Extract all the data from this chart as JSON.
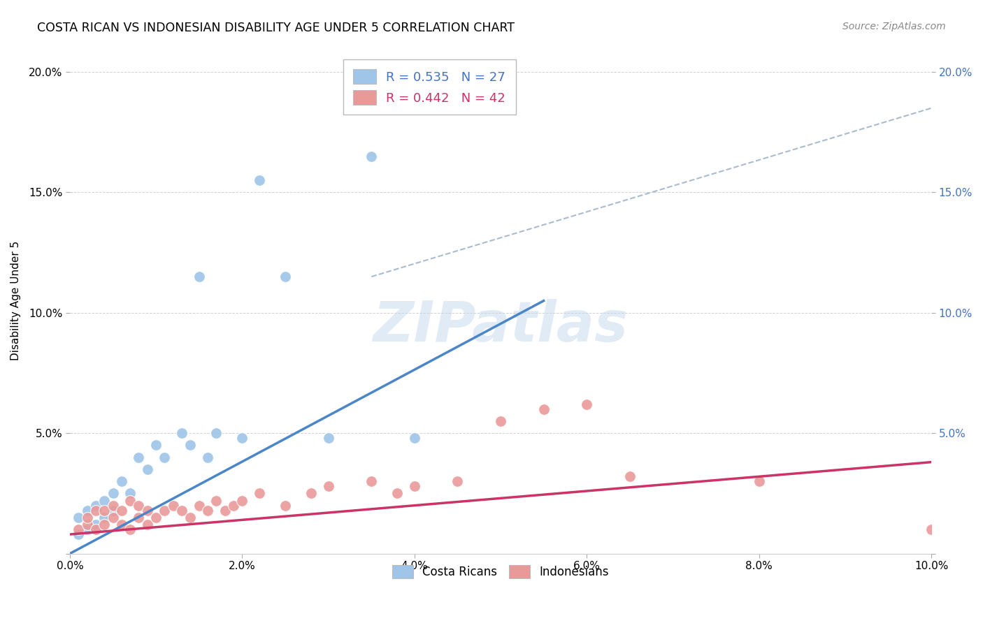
{
  "title": "COSTA RICAN VS INDONESIAN DISABILITY AGE UNDER 5 CORRELATION CHART",
  "source": "Source: ZipAtlas.com",
  "ylabel": "Disability Age Under 5",
  "xlim": [
    0.0,
    0.1
  ],
  "ylim": [
    0.0,
    0.21
  ],
  "xticks": [
    0.0,
    0.02,
    0.04,
    0.06,
    0.08,
    0.1
  ],
  "yticks": [
    0.0,
    0.05,
    0.1,
    0.15,
    0.2
  ],
  "xticklabels": [
    "0.0%",
    "2.0%",
    "4.0%",
    "6.0%",
    "8.0%",
    "10.0%"
  ],
  "yticklabels_left": [
    "",
    "5.0%",
    "10.0%",
    "15.0%",
    "20.0%"
  ],
  "yticklabels_right": [
    "",
    "5.0%",
    "10.0%",
    "15.0%",
    "20.0%"
  ],
  "costa_rican_R": 0.535,
  "costa_rican_N": 27,
  "indonesian_R": 0.442,
  "indonesian_N": 42,
  "blue_color": "#9fc5e8",
  "pink_color": "#ea9999",
  "blue_line_color": "#4a86c8",
  "pink_line_color": "#cc3366",
  "dashed_line_color": "#aabbd0",
  "watermark": "ZIPatlas",
  "costa_ricans_x": [
    0.001,
    0.001,
    0.002,
    0.002,
    0.003,
    0.003,
    0.004,
    0.004,
    0.005,
    0.005,
    0.006,
    0.007,
    0.008,
    0.009,
    0.01,
    0.011,
    0.013,
    0.014,
    0.015,
    0.016,
    0.017,
    0.02,
    0.022,
    0.025,
    0.03,
    0.035,
    0.04
  ],
  "costa_ricans_y": [
    0.008,
    0.015,
    0.01,
    0.018,
    0.012,
    0.02,
    0.015,
    0.022,
    0.018,
    0.025,
    0.03,
    0.025,
    0.04,
    0.035,
    0.045,
    0.04,
    0.05,
    0.045,
    0.115,
    0.04,
    0.05,
    0.048,
    0.155,
    0.115,
    0.048,
    0.165,
    0.048
  ],
  "indonesians_x": [
    0.001,
    0.002,
    0.002,
    0.003,
    0.003,
    0.004,
    0.004,
    0.005,
    0.005,
    0.006,
    0.006,
    0.007,
    0.007,
    0.008,
    0.008,
    0.009,
    0.009,
    0.01,
    0.011,
    0.012,
    0.013,
    0.014,
    0.015,
    0.016,
    0.017,
    0.018,
    0.019,
    0.02,
    0.022,
    0.025,
    0.028,
    0.03,
    0.035,
    0.038,
    0.04,
    0.045,
    0.05,
    0.055,
    0.06,
    0.065,
    0.08,
    0.1
  ],
  "indonesians_y": [
    0.01,
    0.012,
    0.015,
    0.01,
    0.018,
    0.012,
    0.018,
    0.015,
    0.02,
    0.012,
    0.018,
    0.01,
    0.022,
    0.015,
    0.02,
    0.012,
    0.018,
    0.015,
    0.018,
    0.02,
    0.018,
    0.015,
    0.02,
    0.018,
    0.022,
    0.018,
    0.02,
    0.022,
    0.025,
    0.02,
    0.025,
    0.028,
    0.03,
    0.025,
    0.028,
    0.03,
    0.055,
    0.06,
    0.062,
    0.032,
    0.03,
    0.01
  ],
  "cr_line_x0": 0.0,
  "cr_line_y0": 0.0,
  "cr_line_x1": 0.055,
  "cr_line_y1": 0.105,
  "in_line_x0": 0.0,
  "in_line_y0": 0.008,
  "in_line_x1": 0.1,
  "in_line_y1": 0.038,
  "dash_line_x0": 0.035,
  "dash_line_y0": 0.115,
  "dash_line_x1": 0.1,
  "dash_line_y1": 0.185
}
